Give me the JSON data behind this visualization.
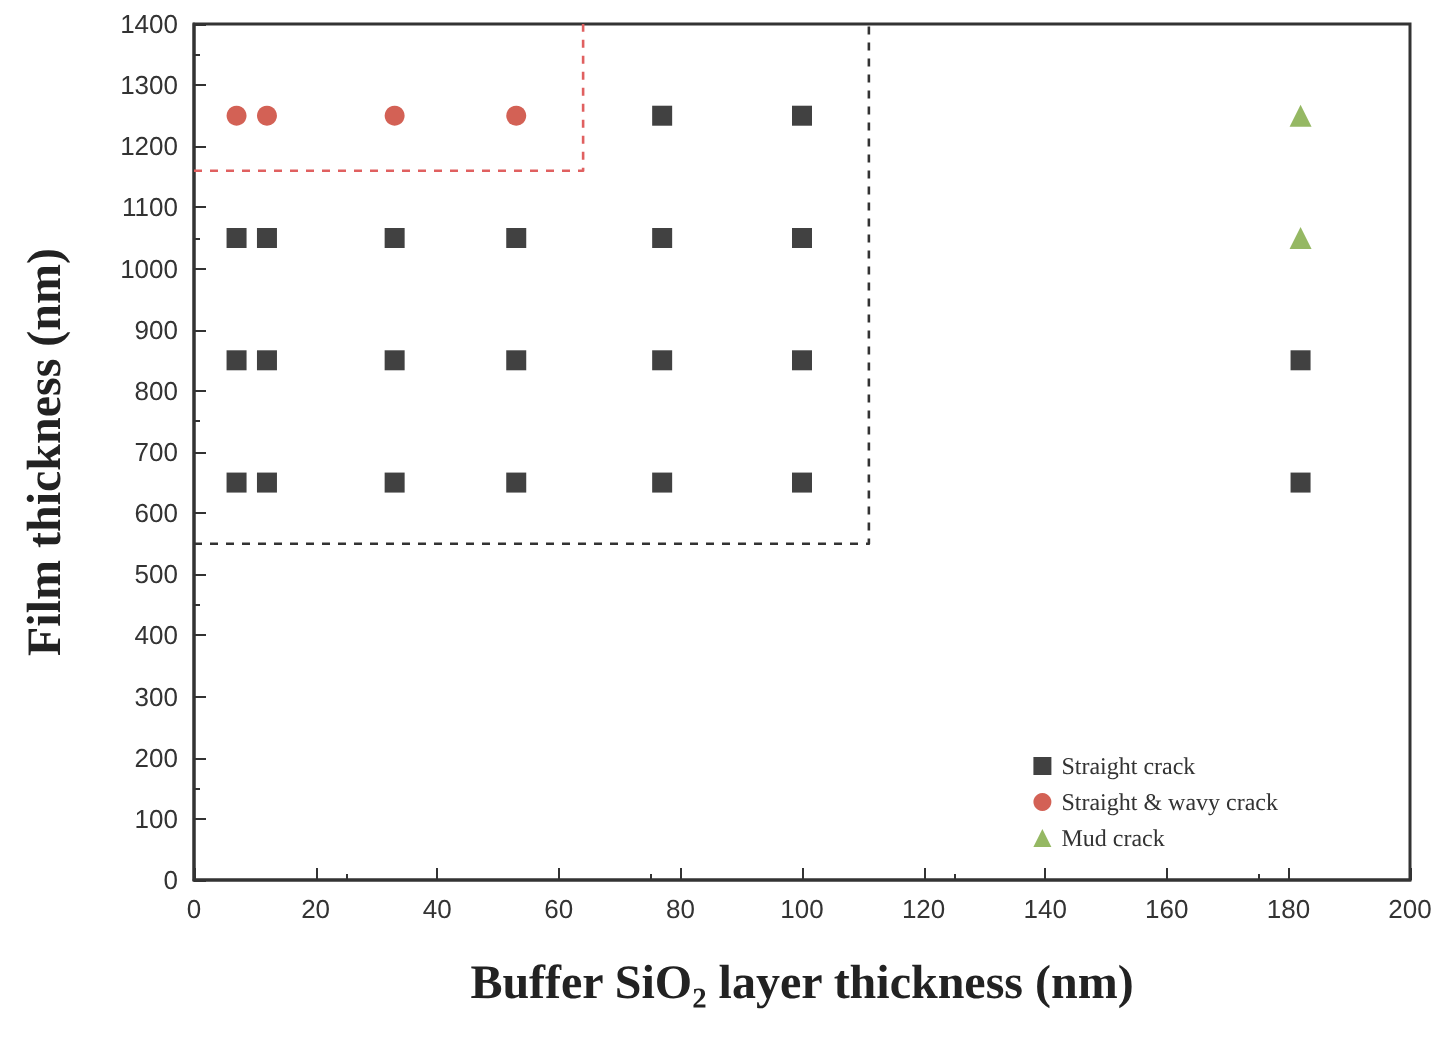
{
  "chart_data": {
    "type": "scatter",
    "xlabel": "Buffer SiO₂ layer thickness (nm)",
    "ylabel": "Film thickness (nm)",
    "xlim": [
      0,
      200
    ],
    "xticks": [
      0,
      20,
      40,
      60,
      80,
      100,
      120,
      140,
      160,
      180,
      200
    ],
    "ylim": [
      0,
      1400
    ],
    "yticks": [
      0,
      100,
      200,
      300,
      400,
      500,
      600,
      700,
      800,
      900,
      1000,
      1100,
      1200,
      1300,
      1400
    ],
    "grid": false,
    "legend": "bottom right",
    "series": [
      {
        "name": "Straight crack",
        "color": "#111111",
        "marker": "square",
        "x": [
          7,
          12,
          33,
          53,
          77,
          100,
          182,
          7,
          12,
          33,
          53,
          77,
          100,
          182,
          7,
          12,
          33,
          53,
          77,
          100,
          77,
          100
        ],
        "values": [
          650,
          650,
          650,
          650,
          650,
          650,
          650,
          850,
          850,
          850,
          850,
          850,
          850,
          850,
          1050,
          1050,
          1050,
          1050,
          1050,
          1050,
          1250,
          1250
        ]
      },
      {
        "name": "Straight & wavy crack",
        "color": "#c8392b",
        "marker": "circle",
        "x": [
          7,
          12,
          33,
          53
        ],
        "values": [
          1250,
          1250,
          1250,
          1250
        ]
      },
      {
        "name": "Mud crack",
        "color": "#7aa63c",
        "marker": "triangle",
        "x": [
          182,
          182
        ],
        "values": [
          1050,
          1250
        ]
      },
      {
        "type": "line",
        "color": "#333333",
        "marker": "none",
        "line_style": "dashed",
        "x": [
          0,
          111,
          111
        ],
        "values": [
          550,
          550,
          1400
        ]
      },
      {
        "type": "line",
        "color": "#e06060",
        "marker": "none",
        "line_style": "dashed",
        "x": [
          0,
          64,
          64
        ],
        "values": [
          1160,
          1160,
          1400
        ]
      }
    ]
  }
}
